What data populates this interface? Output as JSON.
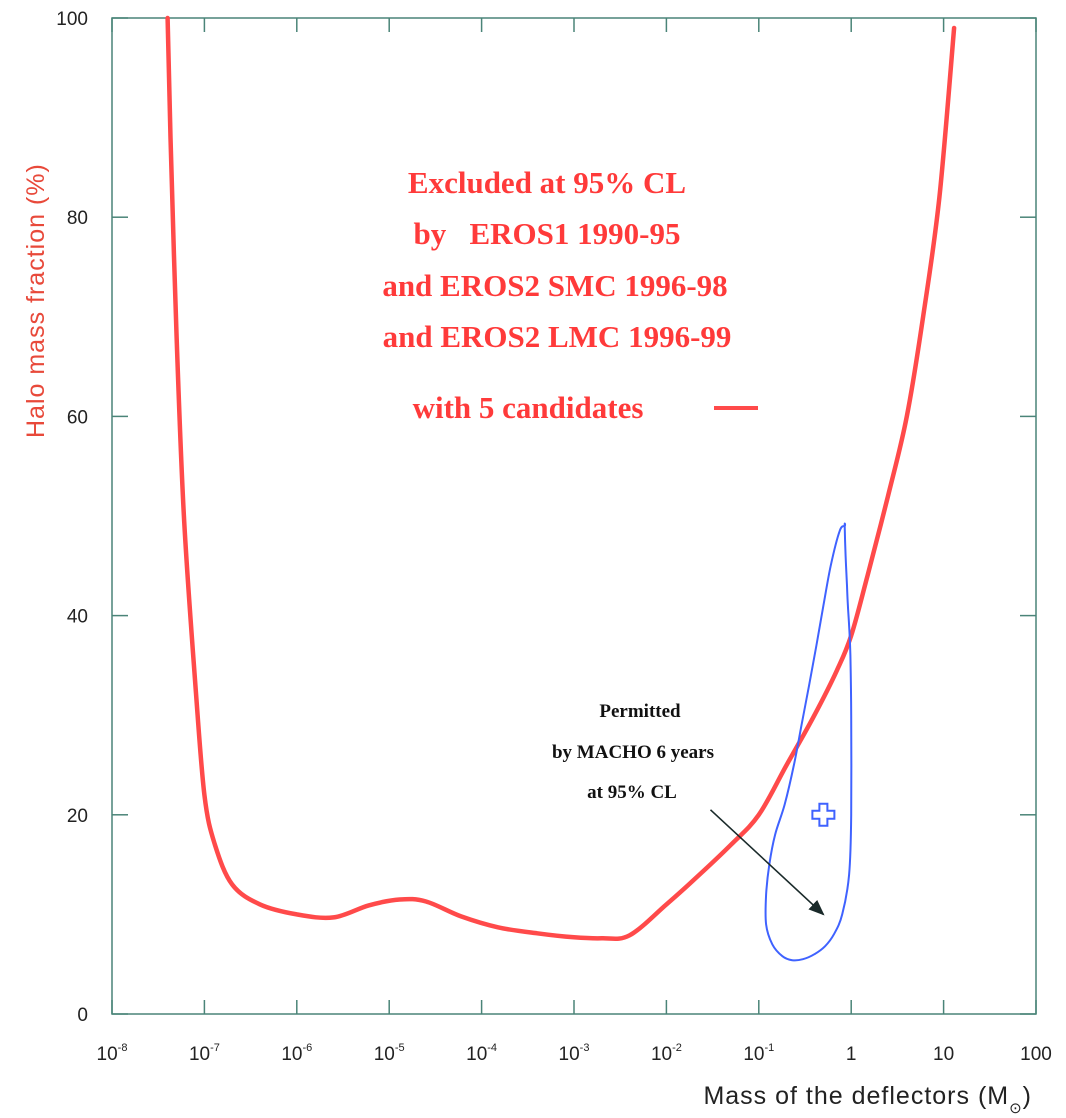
{
  "chart_data": {
    "type": "line",
    "xlabel": "Mass of the deflectors (M",
    "xlabel_sub": "⊙",
    "xlabel_close": ")",
    "ylabel": "Halo mass fraction (%)",
    "xscale": "log",
    "xlim": [
      1e-08,
      100
    ],
    "ylim": [
      0,
      100
    ],
    "x_ticks": [
      {
        "v": 1e-08,
        "base": "10",
        "exp": "-8"
      },
      {
        "v": 1e-07,
        "base": "10",
        "exp": "-7"
      },
      {
        "v": 1e-06,
        "base": "10",
        "exp": "-6"
      },
      {
        "v": 1e-05,
        "base": "10",
        "exp": "-5"
      },
      {
        "v": 0.0001,
        "base": "10",
        "exp": "-4"
      },
      {
        "v": 0.001,
        "base": "10",
        "exp": "-3"
      },
      {
        "v": 0.01,
        "base": "10",
        "exp": "-2"
      },
      {
        "v": 0.1,
        "base": "10",
        "exp": "-1"
      },
      {
        "v": 1,
        "base": "1",
        "exp": ""
      },
      {
        "v": 10,
        "base": "10",
        "exp": ""
      },
      {
        "v": 100,
        "base": "100",
        "exp": ""
      }
    ],
    "y_ticks": [
      0,
      20,
      40,
      60,
      80,
      100
    ],
    "grid": false,
    "series": [
      {
        "kind": "exclusion_limit",
        "color": "#ff4a4a",
        "x": [
          4e-08,
          4.3e-08,
          5e-08,
          6e-08,
          8e-08,
          1e-07,
          1.3e-07,
          2e-07,
          4e-07,
          1e-06,
          2.5e-06,
          6e-06,
          1.3e-05,
          2.5e-05,
          6e-05,
          0.00015,
          0.0004,
          0.001,
          0.002,
          0.004,
          0.01,
          0.02,
          0.05,
          0.1,
          0.2,
          0.4,
          0.7,
          1,
          1.5,
          2.5,
          4,
          6,
          9,
          13
        ],
        "y": [
          100,
          88,
          68,
          50,
          33,
          22,
          17,
          13,
          11,
          10,
          9.7,
          10.9,
          11.5,
          11.3,
          9.8,
          8.7,
          8.1,
          7.7,
          7.6,
          7.9,
          11,
          13.5,
          17,
          20,
          25,
          30,
          34.5,
          38,
          44,
          52,
          60,
          70,
          82,
          99
        ]
      },
      {
        "kind": "confidence_contour",
        "color": "#3f62ff",
        "x": [
          0.85,
          0.75,
          0.6,
          0.5,
          0.42,
          0.35,
          0.29,
          0.24,
          0.19,
          0.15,
          0.13,
          0.12,
          0.12,
          0.14,
          0.18,
          0.23,
          0.3,
          0.4,
          0.52,
          0.65,
          0.8,
          0.95,
          1.0,
          1.0,
          0.98,
          0.95,
          0.92,
          0.9,
          0.87,
          0.85
        ],
        "y": [
          49,
          48.5,
          45,
          41,
          37,
          33,
          29,
          25,
          21,
          18,
          15,
          12,
          9,
          7,
          5.8,
          5.4,
          5.5,
          6,
          6.8,
          8,
          10,
          14,
          20,
          30,
          36,
          39,
          41,
          43,
          46,
          49
        ]
      }
    ],
    "best_fit_marker": {
      "x": 0.5,
      "y": 20,
      "color": "#3f62ff"
    },
    "annotations": {
      "excluded": [
        "Excluded at 95% CL",
        "by   EROS1 1990-95",
        "and EROS2 SMC 1996-98",
        "and EROS2 LMC 1996-99",
        "with 5 candidates"
      ],
      "permitted": [
        "Permitted",
        "by MACHO 6 years",
        "at 95% CL"
      ],
      "arrow_from": {
        "x": 0.03,
        "y": 20.5
      },
      "arrow_to": {
        "x": 0.5,
        "y": 10
      }
    }
  }
}
